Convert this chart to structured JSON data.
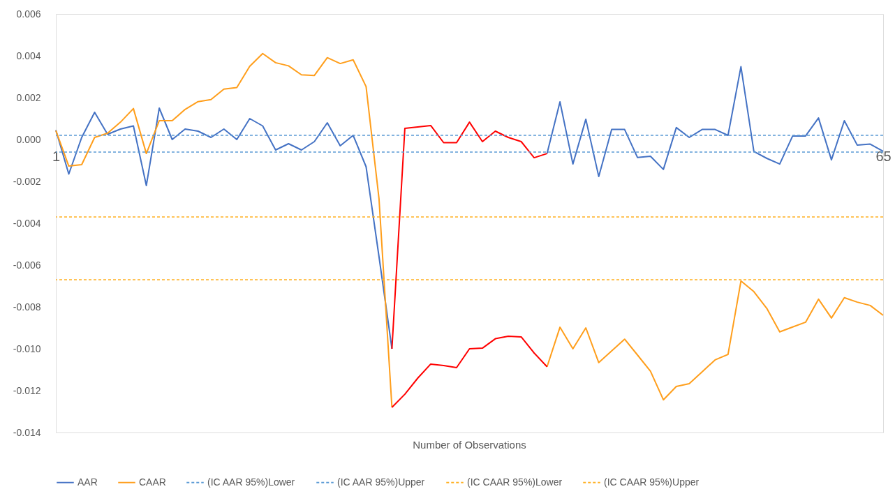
{
  "chart_data": {
    "type": "line",
    "xlabel": "Number of Observations",
    "x": [
      1,
      2,
      3,
      4,
      5,
      6,
      7,
      8,
      9,
      10,
      11,
      12,
      13,
      14,
      15,
      16,
      17,
      18,
      19,
      20,
      21,
      22,
      23,
      24,
      25,
      26,
      27,
      28,
      29,
      30,
      31,
      32,
      33,
      34,
      35,
      36,
      37,
      38,
      39,
      40,
      41,
      42,
      43,
      44,
      45,
      46,
      47,
      48,
      49,
      50,
      51,
      52,
      53,
      54,
      55,
      56,
      57,
      58,
      59,
      60,
      61,
      62,
      63,
      64,
      65
    ],
    "xlim": [
      1,
      65
    ],
    "xticks": [
      1,
      65
    ],
    "ylim": [
      -0.014,
      0.006
    ],
    "yticks": [
      {
        "value": -0.014,
        "label": "-0.014"
      },
      {
        "value": -0.012,
        "label": "-0.012"
      },
      {
        "value": -0.01,
        "label": "-0.010"
      },
      {
        "value": -0.008,
        "label": "-0.008"
      },
      {
        "value": -0.006,
        "label": "-0.006"
      },
      {
        "value": -0.004,
        "label": "-0.004"
      },
      {
        "value": -0.002,
        "label": "-0.002"
      },
      {
        "value": 0,
        "label": "0.000"
      },
      {
        "value": 0.002,
        "label": "0.002"
      },
      {
        "value": 0.004,
        "label": "0.004"
      },
      {
        "value": 0.006,
        "label": "0.006"
      }
    ],
    "series": [
      {
        "name": "AAR",
        "color": "#4472c4",
        "line_style": "solid",
        "values": [
          0.00045,
          -0.00165,
          0.0001,
          0.0013,
          0.00025,
          0.0005,
          0.00065,
          -0.0022,
          0.0015,
          0.0,
          0.0005,
          0.0004,
          0.0001,
          0.0005,
          0.0,
          0.001,
          0.00065,
          -0.0005,
          -0.0002,
          -0.0005,
          -0.0001,
          0.0008,
          -0.0003,
          0.0002,
          -0.0013,
          -0.0056,
          -0.01,
          null,
          null,
          null,
          null,
          null,
          null,
          null,
          null,
          null,
          null,
          null,
          -0.00067,
          0.0018,
          -0.00117,
          0.00097,
          -0.00177,
          0.00048,
          0.00048,
          -0.00086,
          -0.0008,
          -0.00143,
          0.00057,
          0.0001,
          0.00048,
          0.00048,
          0.0002,
          0.00348,
          -0.00057,
          -0.0009,
          -0.00117,
          0.00017,
          0.00017,
          0.00103,
          -0.00097,
          0.0009,
          -0.00027,
          -0.00022,
          -0.00056
        ]
      },
      {
        "name": "CAAR",
        "color": "#ff9e1b",
        "line_style": "solid",
        "values": [
          0.00043,
          -0.00127,
          -0.0012,
          0.0001,
          0.0003,
          0.00083,
          0.00148,
          -0.00067,
          0.0009,
          0.0009,
          0.00144,
          0.00181,
          0.00191,
          0.00241,
          0.00248,
          0.0035,
          0.00411,
          0.00367,
          0.00352,
          0.00309,
          0.00306,
          0.00391,
          0.00363,
          0.00381,
          0.00253,
          -0.00283,
          -0.0128,
          null,
          null,
          null,
          null,
          null,
          null,
          null,
          null,
          null,
          null,
          null,
          -0.01086,
          -0.00897,
          -0.01,
          -0.009,
          -0.01066,
          -0.0101,
          -0.00954,
          -0.0103,
          -0.01107,
          -0.01244,
          -0.0118,
          -0.01167,
          -0.0111,
          -0.01053,
          -0.01027,
          -0.00676,
          -0.00727,
          -0.00807,
          -0.00919,
          -0.00896,
          -0.00873,
          -0.00763,
          -0.00853,
          -0.00756,
          -0.00777,
          -0.00793,
          -0.0084
        ]
      },
      {
        "color": "#ff0000",
        "line_style": "solid",
        "values": [
          null,
          null,
          null,
          null,
          null,
          null,
          null,
          null,
          null,
          null,
          null,
          null,
          null,
          null,
          null,
          null,
          null,
          null,
          null,
          null,
          null,
          null,
          null,
          null,
          null,
          null,
          -0.01,
          0.00053,
          0.0006,
          0.00067,
          -0.00015,
          -0.00015,
          0.00083,
          -0.0001,
          0.0004,
          0.0001,
          -0.0001,
          -0.00087,
          -0.00067,
          null,
          null,
          null,
          null,
          null,
          null,
          null,
          null,
          null,
          null,
          null,
          null,
          null,
          null,
          null,
          null,
          null,
          null,
          null,
          null,
          null,
          null,
          null,
          null,
          null,
          null
        ]
      },
      {
        "color": "#ff0000",
        "line_style": "solid",
        "values": [
          null,
          null,
          null,
          null,
          null,
          null,
          null,
          null,
          null,
          null,
          null,
          null,
          null,
          null,
          null,
          null,
          null,
          null,
          null,
          null,
          null,
          null,
          null,
          null,
          null,
          null,
          -0.0128,
          -0.01217,
          -0.0114,
          -0.01073,
          -0.0108,
          -0.0109,
          -0.01,
          -0.00997,
          -0.00952,
          -0.0094,
          -0.00943,
          -0.0102,
          -0.01086,
          null,
          null,
          null,
          null,
          null,
          null,
          null,
          null,
          null,
          null,
          null,
          null,
          null,
          null,
          null,
          null,
          null,
          null,
          null,
          null,
          null,
          null,
          null,
          null,
          null,
          null
        ]
      }
    ],
    "ref_lines": [
      {
        "axis": "y",
        "value": -0.0006,
        "label": "(IC AAR 95%)Lower",
        "color": "#5b9bd5",
        "line_style": "dashed"
      },
      {
        "axis": "y",
        "value": 0.0002,
        "label": "(IC AAR 95%)Upper",
        "color": "#5b9bd5",
        "line_style": "dashed"
      },
      {
        "axis": "y",
        "value": -0.0067,
        "label": "(IC CAAR 95%)Lower",
        "color": "#ffb020",
        "line_style": "dashed"
      },
      {
        "axis": "y",
        "value": -0.0037,
        "label": "(IC CAAR 95%)Upper",
        "color": "#ffb020",
        "line_style": "dashed"
      }
    ],
    "marker": "none",
    "grid": false,
    "legend": "bottom"
  }
}
